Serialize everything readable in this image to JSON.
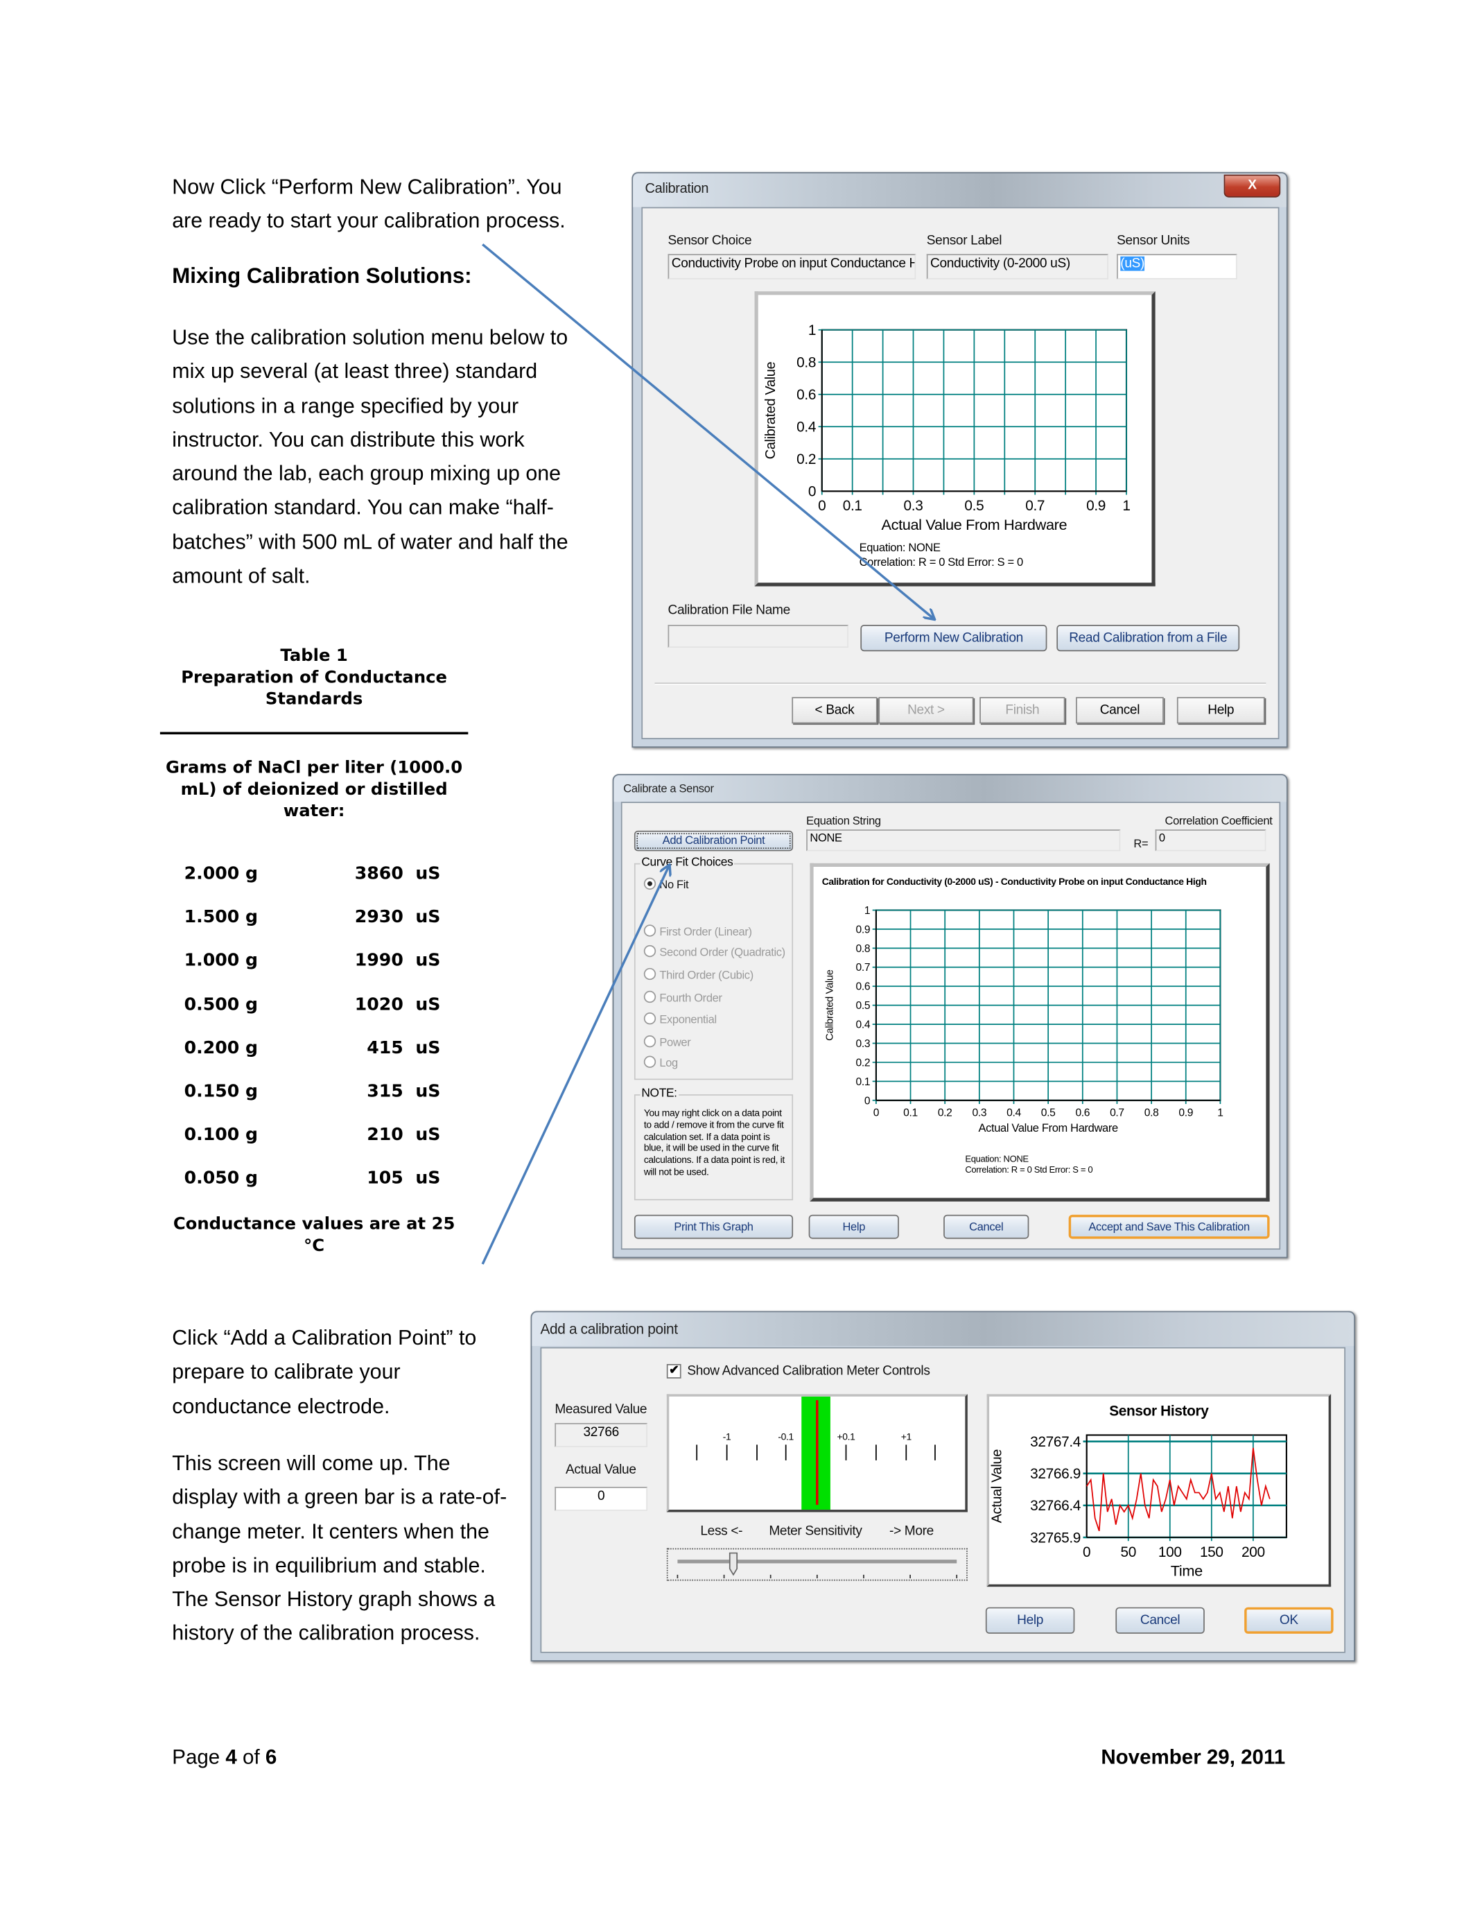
{
  "intro": {
    "paragraph1": "Now Click “Perform New Calibration”.  You are ready to start your calibration process.",
    "heading": "Mixing Calibration Solutions:",
    "paragraph2": "Use the calibration solution menu below to mix up several (at least three) standard solutions in a range specified by your instructor.   You can distribute this work around the lab, each group mixing up one calibration standard.  You can make “half-batches” with 500 mL of water and half the amount of salt.",
    "paragraph3": "Click “Add a Calibration Point” to prepare to calibrate your conductance electrode.",
    "paragraph4": "This screen will come up. The display with a green bar is a rate-of-change meter.  It centers when the probe is in equilibrium and stable.  The Sensor History graph shows a history of the calibration process."
  },
  "table": {
    "title": "Table 1",
    "subtitle": "Preparation of Conductance Standards",
    "header": "Grams of NaCl per liter (1000.0 mL) of deionized or distilled water:",
    "rows": [
      {
        "grams": "2.000 g",
        "conductance": "3860  uS"
      },
      {
        "grams": "1.500 g",
        "conductance": "2930  uS"
      },
      {
        "grams": "1.000 g",
        "conductance": "1990  uS"
      },
      {
        "grams": "0.500 g",
        "conductance": "1020  uS"
      },
      {
        "grams": "0.200 g",
        "conductance": "415  uS"
      },
      {
        "grams": "0.150 g",
        "conductance": "315  uS"
      },
      {
        "grams": "0.100 g",
        "conductance": "210  uS"
      },
      {
        "grams": "0.050 g",
        "conductance": "105  uS"
      }
    ],
    "note": "Conductance values are at 25 °C"
  },
  "calibration_dialog": {
    "title": "Calibration",
    "close_label": "X",
    "sensor_choice_label": "Sensor Choice",
    "sensor_choice_value": "Conductivity Probe  on input  Conductance H",
    "sensor_label_label": "Sensor Label",
    "sensor_label_value": "Conductivity (0-2000 uS)",
    "sensor_units_label": "Sensor Units",
    "sensor_units_value": "(uS)",
    "equation_line": "Equation:    NONE",
    "correlation_line": "Correlation: R = 0  Std Error: S = 0",
    "file_name_label": "Calibration File Name",
    "file_name_value": "",
    "perform_button": "Perform New Calibration",
    "read_button": "Read Calibration from a File",
    "back_button": "< Back",
    "next_button": "Next >",
    "finish_button": "Finish",
    "cancel_button": "Cancel",
    "help_button": "Help"
  },
  "calibrate_sensor_dialog": {
    "title": "Calibrate a Sensor",
    "add_point_button": "Add Calibration Point",
    "equation_string_label": "Equation String",
    "equation_string_value": "NONE",
    "correlation_label": "Correlation Coefficient",
    "r_label": "R=",
    "r_value": "0",
    "curve_fit_label": "Curve Fit Choices",
    "curve_fit_options": [
      "No Fit",
      "First Order (Linear)",
      "Second Order (Quadratic)",
      "Third Order (Cubic)",
      "Fourth Order",
      "Exponential",
      "Power",
      "Log"
    ],
    "curve_fit_selected": "No Fit",
    "note_label": "NOTE:",
    "note_text": "You may right click on a data point to add / remove it from the curve fit calculation set.  If a data point is blue, it will be used in the curve fit calculations.  If a data point is red, it will not be used.",
    "equation_line": "Equation:    NONE",
    "correlation_line": "Correlation: R = 0  Std Error: S = 0",
    "print_button": "Print This Graph",
    "help_button": "Help",
    "cancel_button": "Cancel",
    "accept_button": "Accept and Save This Calibration"
  },
  "add_point_dialog": {
    "title": "Add a calibration point",
    "show_advanced_label": "Show Advanced Calibration Meter Controls",
    "show_advanced_checked": true,
    "measured_value_label": "Measured Value",
    "measured_value": "32766",
    "actual_value_label": "Actual Value",
    "actual_value": "0",
    "meter_labels": [
      "-1",
      "-0.1",
      "+0.1",
      "+1"
    ],
    "less_label": "Less <-",
    "sensitivity_label": "Meter Sensitivity",
    "more_label": "-> More",
    "sensitivity_level": 0.2,
    "help_button": "Help",
    "cancel_button": "Cancel",
    "ok_button": "OK"
  },
  "colors": {
    "grid": "#008080",
    "arrow": "#4a7ebb",
    "meter_bar": "#00e000",
    "meter_needle": "#e00000",
    "history_line": "#e00000"
  },
  "chart_data": [
    {
      "type": "line",
      "title": "",
      "xlabel": "Actual Value From Hardware",
      "ylabel": "Calibrated Value",
      "xlim": [
        0,
        1
      ],
      "ylim": [
        0,
        1
      ],
      "xticks": [
        "0",
        "0.1",
        "0.3",
        "0.5",
        "0.7",
        "0.9",
        "1"
      ],
      "yticks": [
        "0",
        "0.2",
        "0.4",
        "0.6",
        "0.8",
        "1"
      ],
      "grid": true,
      "series": []
    },
    {
      "type": "line",
      "title": "Calibration for Conductivity (0-2000 uS) - Conductivity Probe on input Conductance High",
      "xlabel": "Actual Value From Hardware",
      "ylabel": "Calibrated Value",
      "xlim": [
        0,
        1
      ],
      "ylim": [
        0,
        1
      ],
      "xticks": [
        "0",
        "0.1",
        "0.2",
        "0.3",
        "0.4",
        "0.5",
        "0.6",
        "0.7",
        "0.8",
        "0.9",
        "1"
      ],
      "yticks": [
        "0",
        "0.1",
        "0.2",
        "0.3",
        "0.4",
        "0.5",
        "0.6",
        "0.7",
        "0.8",
        "0.9",
        "1"
      ],
      "grid": true,
      "series": []
    },
    {
      "type": "line",
      "title": "Sensor History",
      "xlabel": "Time",
      "ylabel": "Actual Value",
      "xlim": [
        0,
        240
      ],
      "ylim": [
        32765.9,
        32767.5
      ],
      "xticks": [
        "0",
        "50",
        "100",
        "150",
        "200"
      ],
      "yticks": [
        "32765.9",
        "32766.4",
        "32766.9",
        "32767.4"
      ],
      "grid": true,
      "series": [
        {
          "x": [
            0,
            5,
            10,
            15,
            20,
            25,
            30,
            35,
            40,
            45,
            50,
            55,
            60,
            65,
            70,
            75,
            80,
            85,
            90,
            95,
            100,
            105,
            110,
            115,
            120,
            125,
            130,
            135,
            140,
            145,
            150,
            155,
            160,
            165,
            170,
            175,
            180,
            185,
            190,
            195,
            200,
            205,
            210,
            215,
            220
          ],
          "y": [
            32766.7,
            32766.8,
            32766.2,
            32766.0,
            32766.9,
            32766.3,
            32766.5,
            32766.1,
            32766.4,
            32766.3,
            32766.4,
            32766.2,
            32766.5,
            32766.9,
            32766.4,
            32766.2,
            32766.8,
            32766.7,
            32766.3,
            32766.5,
            32766.8,
            32766.4,
            32766.7,
            32766.6,
            32766.5,
            32766.8,
            32766.6,
            32766.6,
            32766.5,
            32766.6,
            32766.9,
            32766.5,
            32766.6,
            32766.3,
            32766.7,
            32766.2,
            32766.7,
            32766.3,
            32766.6,
            32766.5,
            32767.3,
            32766.8,
            32766.4,
            32766.7,
            32766.5
          ]
        }
      ]
    }
  ],
  "footer": {
    "page_prefix": "Page ",
    "page_current": "4",
    "page_of": " of ",
    "page_total": "6",
    "date": "November 29, 2011"
  }
}
